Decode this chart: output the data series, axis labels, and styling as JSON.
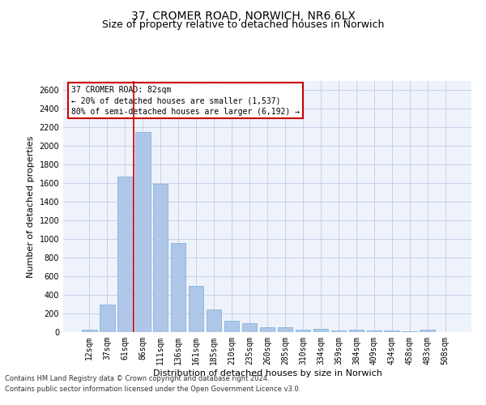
{
  "title_line1": "37, CROMER ROAD, NORWICH, NR6 6LX",
  "title_line2": "Size of property relative to detached houses in Norwich",
  "xlabel": "Distribution of detached houses by size in Norwich",
  "ylabel": "Number of detached properties",
  "categories": [
    "12sqm",
    "37sqm",
    "61sqm",
    "86sqm",
    "111sqm",
    "136sqm",
    "161sqm",
    "185sqm",
    "210sqm",
    "235sqm",
    "260sqm",
    "285sqm",
    "310sqm",
    "334sqm",
    "359sqm",
    "384sqm",
    "409sqm",
    "434sqm",
    "458sqm",
    "483sqm",
    "508sqm"
  ],
  "values": [
    25,
    300,
    1670,
    2150,
    1590,
    960,
    500,
    248,
    120,
    100,
    50,
    50,
    30,
    35,
    20,
    25,
    20,
    20,
    5,
    25,
    0
  ],
  "bar_color": "#aec6e8",
  "bar_edge_color": "#7aadd4",
  "bar_width": 0.85,
  "vline_color": "#cc0000",
  "ylim": [
    0,
    2700
  ],
  "yticks": [
    0,
    200,
    400,
    600,
    800,
    1000,
    1200,
    1400,
    1600,
    1800,
    2000,
    2200,
    2400,
    2600
  ],
  "annotation_text": "37 CROMER ROAD: 82sqm\n← 20% of detached houses are smaller (1,537)\n80% of semi-detached houses are larger (6,192) →",
  "annotation_box_color": "#ffffff",
  "annotation_box_edge": "#cc0000",
  "footer_line1": "Contains HM Land Registry data © Crown copyright and database right 2024.",
  "footer_line2": "Contains public sector information licensed under the Open Government Licence v3.0.",
  "bg_color": "#eef2fb",
  "grid_color": "#c8d0e8",
  "title_fontsize": 10,
  "subtitle_fontsize": 9,
  "axis_label_fontsize": 8,
  "tick_fontsize": 7,
  "footer_fontsize": 6,
  "annot_fontsize": 7
}
